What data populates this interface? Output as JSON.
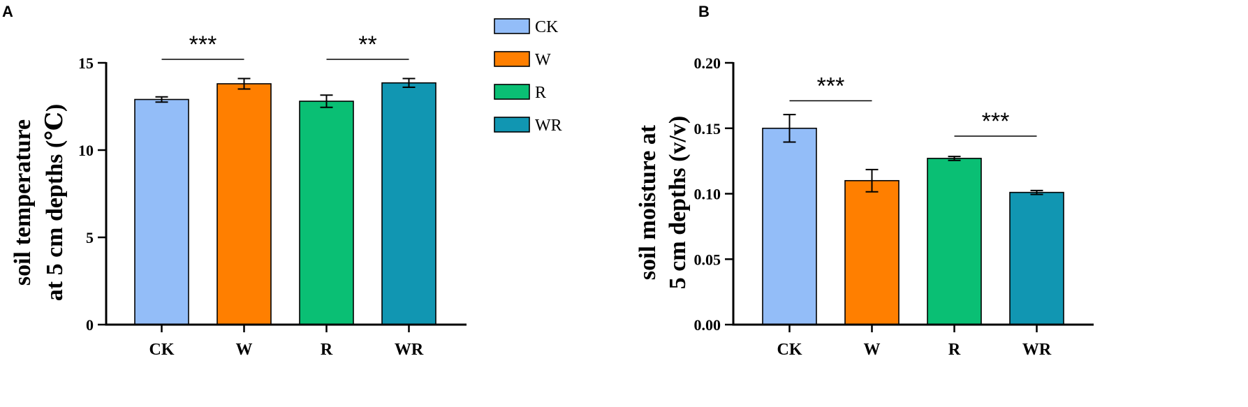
{
  "colors": {
    "CK": "#93bdf8",
    "W": "#ff7f00",
    "R": "#0abf74",
    "WR": "#1196b2",
    "axis": "#000000"
  },
  "legend": {
    "items": [
      {
        "label": "CK",
        "color_key": "CK"
      },
      {
        "label": "W",
        "color_key": "W"
      },
      {
        "label": "R",
        "color_key": "R"
      },
      {
        "label": "WR",
        "color_key": "WR"
      }
    ]
  },
  "chart_data": [
    {
      "panel": "A",
      "type": "bar",
      "categories": [
        "CK",
        "W",
        "R",
        "WR"
      ],
      "values": [
        12.9,
        13.8,
        12.8,
        13.85
      ],
      "errors": [
        0.15,
        0.3,
        0.35,
        0.25
      ],
      "ylabel_line1": "soil temperature",
      "ylabel_line2": "at 5 cm depths (℃)",
      "ylim": [
        0,
        15
      ],
      "yticks": [
        0,
        5,
        10,
        15
      ],
      "ytick_labels": [
        "0",
        "5",
        "10",
        "15"
      ],
      "significance": [
        {
          "from": "CK",
          "to": "W",
          "label": "***",
          "y": 15.2
        },
        {
          "from": "R",
          "to": "WR",
          "label": "**",
          "y": 15.2
        }
      ]
    },
    {
      "panel": "B",
      "type": "bar",
      "categories": [
        "CK",
        "W",
        "R",
        "WR"
      ],
      "values": [
        0.15,
        0.11,
        0.127,
        0.101
      ],
      "errors": [
        0.0105,
        0.0085,
        0.0015,
        0.0015
      ],
      "ylabel_line1": "soil moisture at",
      "ylabel_line2": "5 cm depths (v/v)",
      "ylim": [
        0,
        0.2
      ],
      "yticks": [
        0,
        0.05,
        0.1,
        0.15,
        0.2
      ],
      "ytick_labels": [
        "0.00",
        "0.05",
        "0.10",
        "0.15",
        "0.20"
      ],
      "significance": [
        {
          "from": "CK",
          "to": "W",
          "label": "***",
          "y": 0.171
        },
        {
          "from": "R",
          "to": "WR",
          "label": "***",
          "y": 0.144
        }
      ]
    }
  ]
}
